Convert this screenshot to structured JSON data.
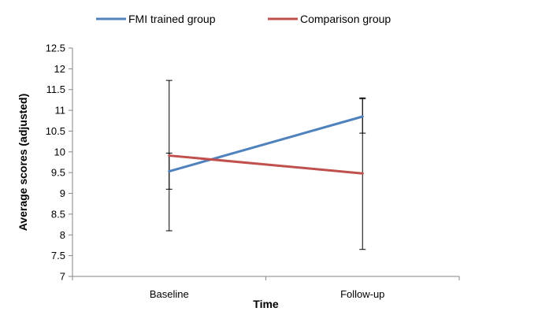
{
  "chart_data": {
    "type": "line",
    "categories": [
      "Baseline",
      "Follow-up"
    ],
    "xlabel": "Time",
    "ylabel": "Average scores (adjusted)",
    "ylim": [
      7,
      12.5
    ],
    "ytick_step": 0.5,
    "yticks": [
      "7",
      "7.5",
      "8",
      "8.5",
      "9",
      "9.5",
      "10",
      "10.5",
      "11",
      "11.5",
      "12",
      "12.5"
    ],
    "grid": false,
    "legend_position": "top",
    "series": [
      {
        "name": "FMI trained group",
        "color": "#4f81bd",
        "values": [
          9.53,
          10.85
        ],
        "error_low": [
          8.1,
          10.45
        ],
        "error_high": [
          9.97,
          11.28
        ]
      },
      {
        "name": "Comparison group",
        "color": "#c0504d",
        "values": [
          9.91,
          9.48
        ],
        "error_low": [
          9.1,
          7.65
        ],
        "error_high": [
          11.72,
          11.3
        ]
      }
    ]
  }
}
